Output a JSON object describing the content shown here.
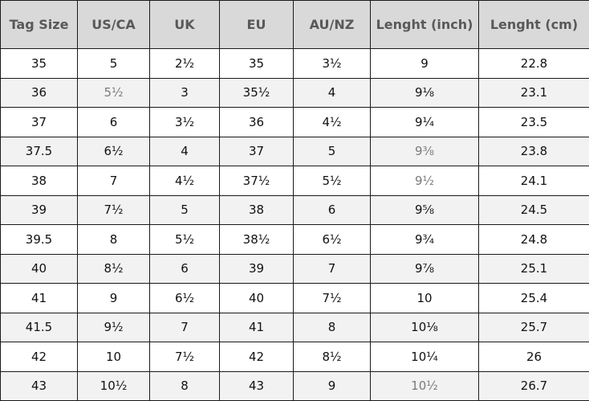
{
  "table": {
    "headers": [
      "Tag Size",
      "US/CA",
      "UK",
      "EU",
      "AU/NZ",
      "Lenght (inch)",
      "Lenght (cm)"
    ],
    "rows": [
      [
        "35",
        "5",
        "2½",
        "35",
        "3½",
        "9",
        "22.8"
      ],
      [
        "36",
        "5½",
        "3",
        "35½",
        "4",
        "9⅛",
        "23.1"
      ],
      [
        "37",
        "6",
        "3½",
        "36",
        "4½",
        "9¼",
        "23.5"
      ],
      [
        "37.5",
        "6½",
        "4",
        "37",
        "5",
        "9⅜",
        "23.8"
      ],
      [
        "38",
        "7",
        "4½",
        "37½",
        "5½",
        "9½",
        "24.1"
      ],
      [
        "39",
        "7½",
        "5",
        "38",
        "6",
        "9⅝",
        "24.5"
      ],
      [
        "39.5",
        "8",
        "5½",
        "38½",
        "6½",
        "9¾",
        "24.8"
      ],
      [
        "40",
        "8½",
        "6",
        "39",
        "7",
        "9⅞",
        "25.1"
      ],
      [
        "41",
        "9",
        "6½",
        "40",
        "7½",
        "10",
        "25.4"
      ],
      [
        "41.5",
        "9½",
        "7",
        "41",
        "8",
        "10⅛",
        "25.7"
      ],
      [
        "42",
        "10",
        "7½",
        "42",
        "8½",
        "10¼",
        "26"
      ],
      [
        "43",
        "10½",
        "8",
        "43",
        "9",
        "10½",
        "26.7"
      ]
    ],
    "muted_cells": [
      [
        1,
        1
      ],
      [
        3,
        5
      ],
      [
        4,
        5
      ],
      [
        11,
        5
      ]
    ],
    "colors": {
      "header_bg": "#d9d9d9",
      "header_text": "#595959",
      "alt_row_bg": "#f2f2f2",
      "muted_text": "#7a7a7a",
      "border": "#1a1a1a"
    }
  }
}
